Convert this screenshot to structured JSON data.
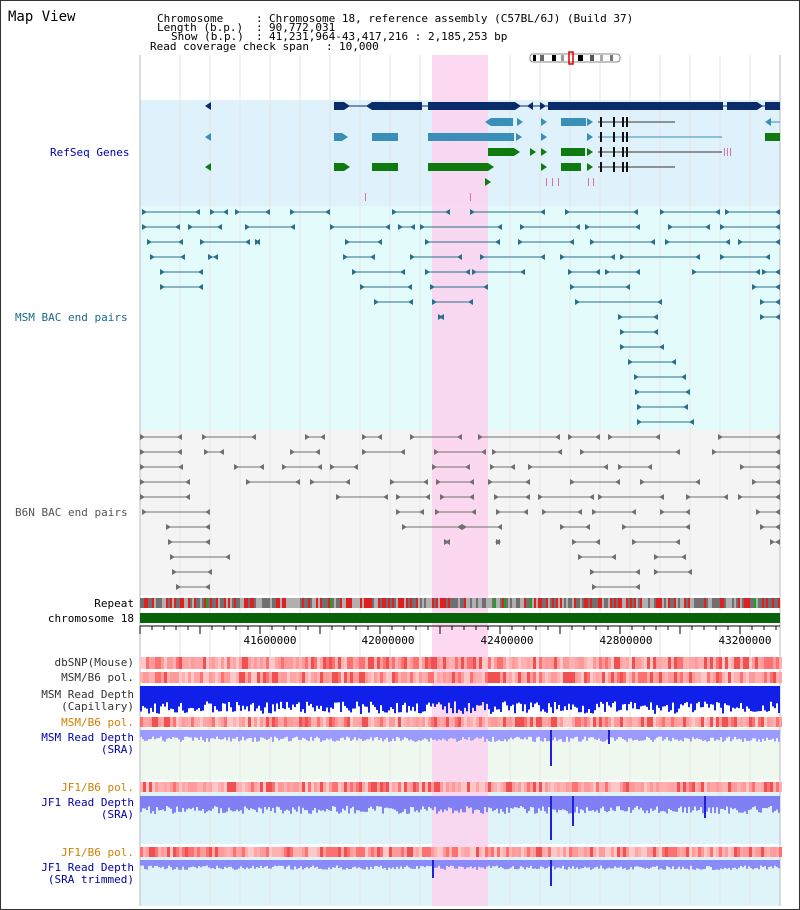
{
  "window_title": "Map View",
  "header": {
    "chromosome_key": "Chromosome",
    "chromosome_val": "Chromosome 18, reference assembly (C57BL/6J) (Build 37)",
    "length_key": "Length (b.p.)",
    "length_val": "90,772,031",
    "show_key": "Show (b.p.)",
    "show_val": "41,231,964-43,417,216 : 2,185,253 bp",
    "span_key": "Read coverage check span",
    "span_val": "10,000"
  },
  "tracks": {
    "refseq": "RefSeq Genes",
    "msm_bac": "MSM BAC end pairs",
    "b6n_bac": "B6N BAC end pairs",
    "repeat": "Repeat",
    "chromosome": "chromosome 18",
    "dbsnp": "dbSNP(Mouse)",
    "msm_b6_pol_1": "MSM/B6 pol.",
    "msm_read_depth_cap_1": "MSM Read Depth",
    "msm_read_depth_cap_2": "(Capillary)",
    "msm_b6_pol_2": "MSM/B6 pol.",
    "msm_read_depth_sra_1": "MSM Read Depth",
    "msm_read_depth_sra_2": "(SRA)",
    "jf1_b6_pol_1": "JF1/B6 pol.",
    "jf1_read_depth_sra_1": "JF1 Read Depth",
    "jf1_read_depth_sra_2": "(SRA)",
    "jf1_b6_pol_2": "JF1/B6 pol.",
    "jf1_read_depth_trim_1": "JF1 Read Depth",
    "jf1_read_depth_trim_2": "(SRA trimmed)"
  },
  "axis_ticks": [
    "41600000",
    "42000000",
    "42400000",
    "42800000",
    "43200000"
  ],
  "colors": {
    "refseq_bg": "#dff1fb",
    "msm_bg": "#e4fbfb",
    "b6n_bg": "#f4f4f4",
    "highlight": "#fbd2ef",
    "navy": "#0b2c6b",
    "teal": "#3a8fb8",
    "green": "#0e7a10",
    "msm_line": "#2a6f8c",
    "b6n_line": "#707070",
    "chrom": "#086208",
    "label_blue": "#0000aa",
    "label_teal": "#1a6a8a",
    "label_orange": "#d08000"
  }
}
